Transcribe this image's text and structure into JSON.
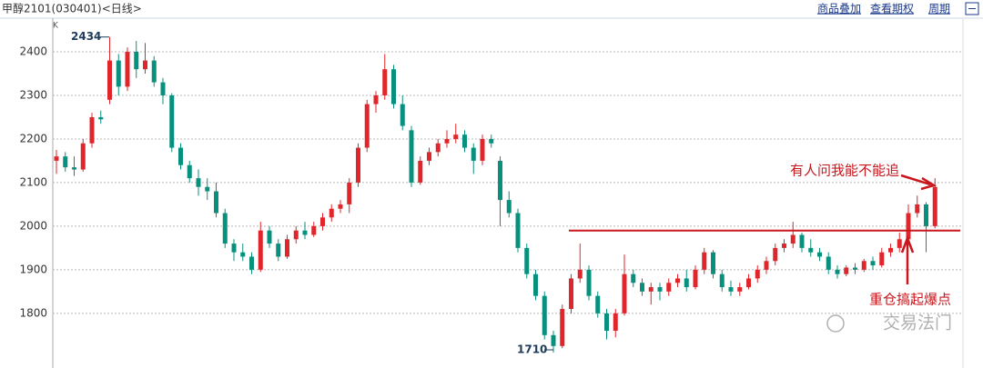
{
  "header": {
    "title": "甲醇2101(030401)<日线>",
    "links": [
      "商品叠加",
      "查看期权",
      "周期"
    ]
  },
  "chart_data": {
    "type": "candlestick",
    "y_unit_label": "K",
    "ylim": [
      1685,
      2473
    ],
    "yticks": [
      1800,
      1900,
      2000,
      2100,
      2200,
      2300,
      2400
    ],
    "grid": true,
    "up_color": "#e0262b",
    "down_color": "#07907e",
    "ohlc": [
      [
        2150,
        2175,
        2120,
        2160
      ],
      [
        2160,
        2170,
        2125,
        2135
      ],
      [
        2135,
        2160,
        2115,
        2130
      ],
      [
        2130,
        2200,
        2125,
        2190
      ],
      [
        2190,
        2260,
        2180,
        2250
      ],
      [
        2250,
        2265,
        2235,
        2245
      ],
      [
        2290,
        2434,
        2280,
        2380
      ],
      [
        2380,
        2395,
        2300,
        2320
      ],
      [
        2320,
        2410,
        2310,
        2400
      ],
      [
        2400,
        2425,
        2340,
        2360
      ],
      [
        2360,
        2420,
        2350,
        2380
      ],
      [
        2380,
        2390,
        2320,
        2330
      ],
      [
        2330,
        2340,
        2280,
        2300
      ],
      [
        2300,
        2305,
        2170,
        2180
      ],
      [
        2180,
        2190,
        2130,
        2140
      ],
      [
        2140,
        2150,
        2100,
        2110
      ],
      [
        2110,
        2130,
        2070,
        2090
      ],
      [
        2090,
        2110,
        2060,
        2080
      ],
      [
        2080,
        2100,
        2020,
        2030
      ],
      [
        2030,
        2040,
        1950,
        1960
      ],
      [
        1960,
        1970,
        1920,
        1940
      ],
      [
        1940,
        1960,
        1920,
        1930
      ],
      [
        1930,
        1940,
        1890,
        1900
      ],
      [
        1900,
        2010,
        1895,
        1990
      ],
      [
        1990,
        2000,
        1950,
        1960
      ],
      [
        1960,
        1970,
        1920,
        1930
      ],
      [
        1930,
        1980,
        1925,
        1970
      ],
      [
        1970,
        2000,
        1960,
        1990
      ],
      [
        1990,
        2010,
        1970,
        1980
      ],
      [
        1980,
        2010,
        1975,
        2000
      ],
      [
        2000,
        2030,
        1990,
        2020
      ],
      [
        2020,
        2050,
        2010,
        2040
      ],
      [
        2040,
        2060,
        2030,
        2050
      ],
      [
        2050,
        2110,
        2030,
        2100
      ],
      [
        2100,
        2190,
        2090,
        2180
      ],
      [
        2180,
        2290,
        2170,
        2280
      ],
      [
        2280,
        2310,
        2260,
        2300
      ],
      [
        2300,
        2395,
        2290,
        2360
      ],
      [
        2360,
        2370,
        2270,
        2280
      ],
      [
        2280,
        2300,
        2220,
        2230
      ],
      [
        2220,
        2230,
        2090,
        2100
      ],
      [
        2100,
        2160,
        2095,
        2150
      ],
      [
        2150,
        2180,
        2140,
        2170
      ],
      [
        2170,
        2200,
        2160,
        2190
      ],
      [
        2190,
        2220,
        2180,
        2200
      ],
      [
        2200,
        2235,
        2190,
        2210
      ],
      [
        2210,
        2220,
        2170,
        2180
      ],
      [
        2180,
        2190,
        2120,
        2150
      ],
      [
        2150,
        2210,
        2140,
        2200
      ],
      [
        2200,
        2210,
        2180,
        2190
      ],
      [
        2150,
        2160,
        2000,
        2060
      ],
      [
        2060,
        2080,
        2020,
        2030
      ],
      [
        2030,
        2040,
        1940,
        1950
      ],
      [
        1950,
        1960,
        1880,
        1890
      ],
      [
        1890,
        1900,
        1830,
        1840
      ],
      [
        1840,
        1850,
        1740,
        1750
      ],
      [
        1750,
        1760,
        1710,
        1725
      ],
      [
        1725,
        1820,
        1720,
        1810
      ],
      [
        1810,
        1890,
        1800,
        1880
      ],
      [
        1880,
        1960,
        1870,
        1900
      ],
      [
        1900,
        1910,
        1830,
        1840
      ],
      [
        1840,
        1850,
        1790,
        1800
      ],
      [
        1800,
        1810,
        1740,
        1760
      ],
      [
        1760,
        1810,
        1745,
        1800
      ],
      [
        1800,
        1935,
        1795,
        1890
      ],
      [
        1890,
        1900,
        1860,
        1870
      ],
      [
        1870,
        1880,
        1840,
        1850
      ],
      [
        1850,
        1870,
        1820,
        1860
      ],
      [
        1860,
        1870,
        1830,
        1850
      ],
      [
        1850,
        1880,
        1840,
        1870
      ],
      [
        1870,
        1890,
        1860,
        1880
      ],
      [
        1880,
        1900,
        1850,
        1860
      ],
      [
        1860,
        1910,
        1855,
        1900
      ],
      [
        1900,
        1950,
        1890,
        1940
      ],
      [
        1940,
        1945,
        1880,
        1890
      ],
      [
        1890,
        1900,
        1850,
        1860
      ],
      [
        1860,
        1875,
        1840,
        1850
      ],
      [
        1850,
        1870,
        1840,
        1860
      ],
      [
        1860,
        1890,
        1855,
        1880
      ],
      [
        1880,
        1910,
        1870,
        1900
      ],
      [
        1900,
        1930,
        1890,
        1920
      ],
      [
        1920,
        1960,
        1910,
        1950
      ],
      [
        1950,
        1970,
        1940,
        1960
      ],
      [
        1960,
        2010,
        1950,
        1980
      ],
      [
        1980,
        1985,
        1940,
        1950
      ],
      [
        1950,
        1970,
        1930,
        1940
      ],
      [
        1940,
        1950,
        1920,
        1930
      ],
      [
        1930,
        1940,
        1890,
        1900
      ],
      [
        1900,
        1910,
        1880,
        1890
      ],
      [
        1890,
        1910,
        1885,
        1905
      ],
      [
        1905,
        1915,
        1890,
        1900
      ],
      [
        1900,
        1925,
        1895,
        1920
      ],
      [
        1920,
        1930,
        1900,
        1910
      ],
      [
        1910,
        1950,
        1905,
        1940
      ],
      [
        1940,
        1960,
        1930,
        1950
      ],
      [
        1950,
        1985,
        1940,
        1970
      ],
      [
        1970,
        2050,
        1960,
        2030
      ],
      [
        2030,
        2070,
        2020,
        2050
      ],
      [
        2050,
        2055,
        1940,
        2000
      ],
      [
        2000,
        2110,
        1995,
        2090
      ]
    ],
    "reference_line": {
      "value": 1990,
      "color": "#c8161d"
    },
    "extreme_labels": [
      {
        "text": "2434",
        "value": 2434
      },
      {
        "text": "1710",
        "value": 1710
      }
    ],
    "annotations": [
      "有人问我能不能追",
      "重仓搞起爆点"
    ],
    "watermark": "交易法门"
  }
}
